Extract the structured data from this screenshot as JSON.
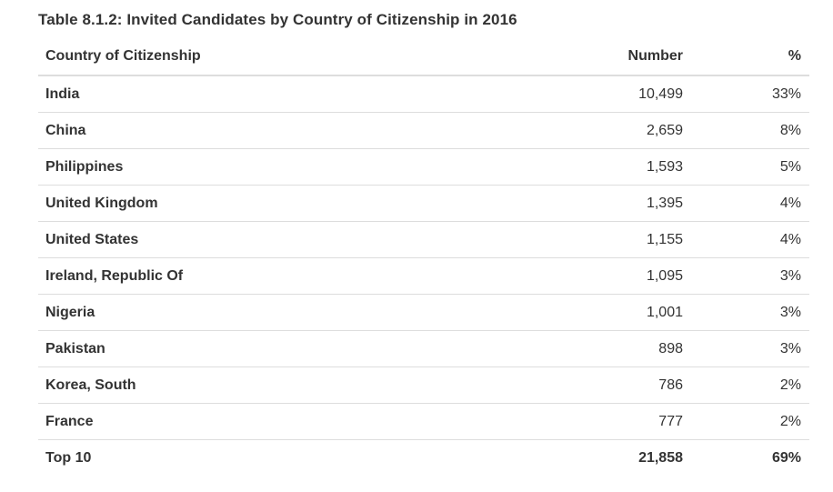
{
  "caption": "Table 8.1.2: Invited Candidates by Country of Citizenship in 2016",
  "headers": {
    "country": "Country of Citizenship",
    "number": "Number",
    "percent": "%"
  },
  "rows": [
    {
      "country": "India",
      "number": "10,499",
      "percent": "33%"
    },
    {
      "country": "China",
      "number": "2,659",
      "percent": "8%"
    },
    {
      "country": "Philippines",
      "number": "1,593",
      "percent": "5%"
    },
    {
      "country": "United Kingdom",
      "number": "1,395",
      "percent": "4%"
    },
    {
      "country": "United States",
      "number": "1,155",
      "percent": "4%"
    },
    {
      "country": "Ireland, Republic Of",
      "number": "1,095",
      "percent": "3%"
    },
    {
      "country": "Nigeria",
      "number": "1,001",
      "percent": "3%"
    },
    {
      "country": "Pakistan",
      "number": "898",
      "percent": "3%"
    },
    {
      "country": "Korea, South",
      "number": "786",
      "percent": "2%"
    },
    {
      "country": "France",
      "number": "777",
      "percent": "2%"
    }
  ],
  "total": {
    "country": "Top 10",
    "number": "21,858",
    "percent": "69%"
  }
}
